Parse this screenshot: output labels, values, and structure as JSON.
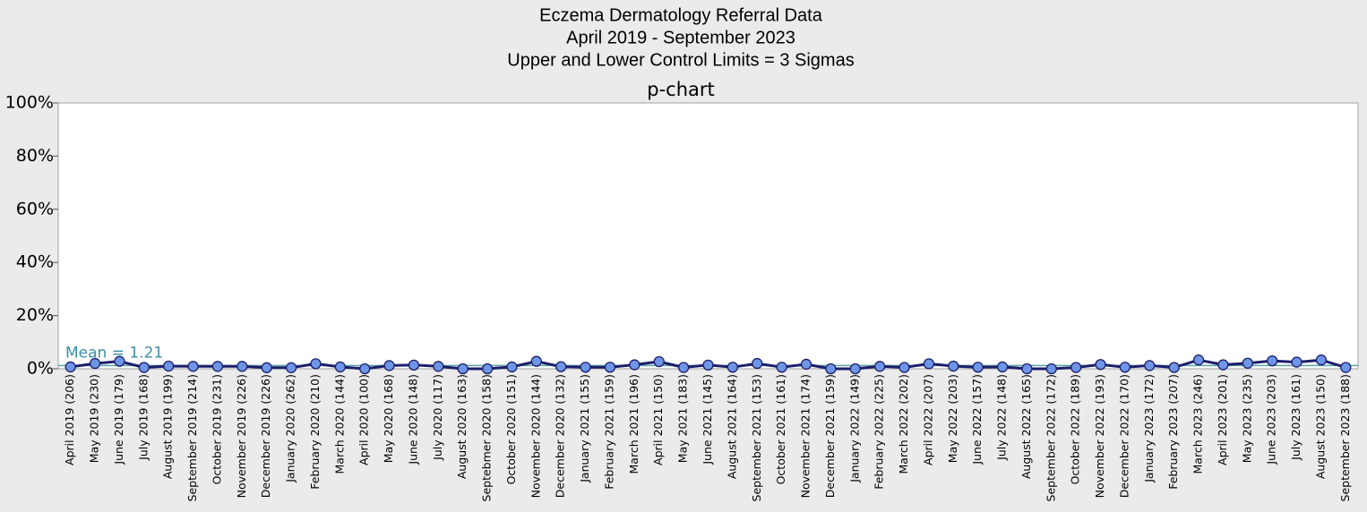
{
  "chart_data": {
    "type": "line",
    "title": "Eczema Dermatology Referral Data",
    "subtitle": [
      "April 2019 - September 2023",
      "Upper and Lower Control Limits = 3 Sigmas"
    ],
    "panel_title": "p-chart",
    "categories": [
      "April 2019 (206)",
      "May 2019 (230)",
      "June 2019 (179)",
      "July 2019 (168)",
      "August 2019 (199)",
      "September 2019 (214)",
      "October 2019 (231)",
      "November 2019 (226)",
      "December 2019 (226)",
      "January 2020 (262)",
      "February 2020 (210)",
      "March 2020 (144)",
      "April 2020 (100)",
      "May 2020 (168)",
      "June 2020 (148)",
      "July 2020 (117)",
      "August 2020 (163)",
      "Septebmer 2020 (158)",
      "October 2020 (151)",
      "November 2020 (144)",
      "December 2020 (132)",
      "January 2021 (155)",
      "February 2021 (159)",
      "March 2021 (196)",
      "April 2021 (150)",
      "May 2021 (183)",
      "June 2021 (145)",
      "August 2021 (164)",
      "September 2021 (153)",
      "October 2021 (161)",
      "November 2021 (174)",
      "December 2021 (159)",
      "January 2022 (149)",
      "February 2022 (225)",
      "March 2022 (202)",
      "April 2022 (207)",
      "May 2022 (203)",
      "June 2022 (157)",
      "July 2022 (148)",
      "August 2022 (165)",
      "September 2022 (172)",
      "October 2022 (189)",
      "November 2022 (193)",
      "December 2022 (170)",
      "January 2023 (172)",
      "February 2023 (207)",
      "March 2023 (246)",
      "April 2023 (201)",
      "May 2023 (235)",
      "June 2023 (203)",
      "July 2023 (161)",
      "August 2023 (150)",
      "September 2023 (188)"
    ],
    "values": [
      0.7,
      2.0,
      2.8,
      0.5,
      1.0,
      0.9,
      0.9,
      0.9,
      0.4,
      0.4,
      1.9,
      0.7,
      0,
      1.2,
      1.4,
      0.9,
      0,
      0,
      0.7,
      2.8,
      0.8,
      0.6,
      0.6,
      1.5,
      2.7,
      0.5,
      1.4,
      0.6,
      2.0,
      0.6,
      1.7,
      0,
      0,
      0.9,
      0.5,
      1.9,
      1.0,
      0.6,
      0.7,
      0,
      0,
      0.5,
      1.6,
      0.6,
      1.2,
      0.5,
      3.3,
      1.5,
      2.1,
      3.0,
      2.5,
      3.3,
      0.5
    ],
    "color": "#1c1f6b",
    "marker_color": "#6f95e6",
    "mean": {
      "value": 1.21,
      "label": "Mean = 1.21",
      "color": "#5aa3a3"
    },
    "ylim": [
      0,
      100
    ],
    "yticks": [
      {
        "value": 0,
        "label": "0%"
      },
      {
        "value": 20,
        "label": "20%"
      },
      {
        "value": 40,
        "label": "40%"
      },
      {
        "value": 60,
        "label": "60%"
      },
      {
        "value": 80,
        "label": "80%"
      },
      {
        "value": 100,
        "label": "100%"
      }
    ]
  }
}
